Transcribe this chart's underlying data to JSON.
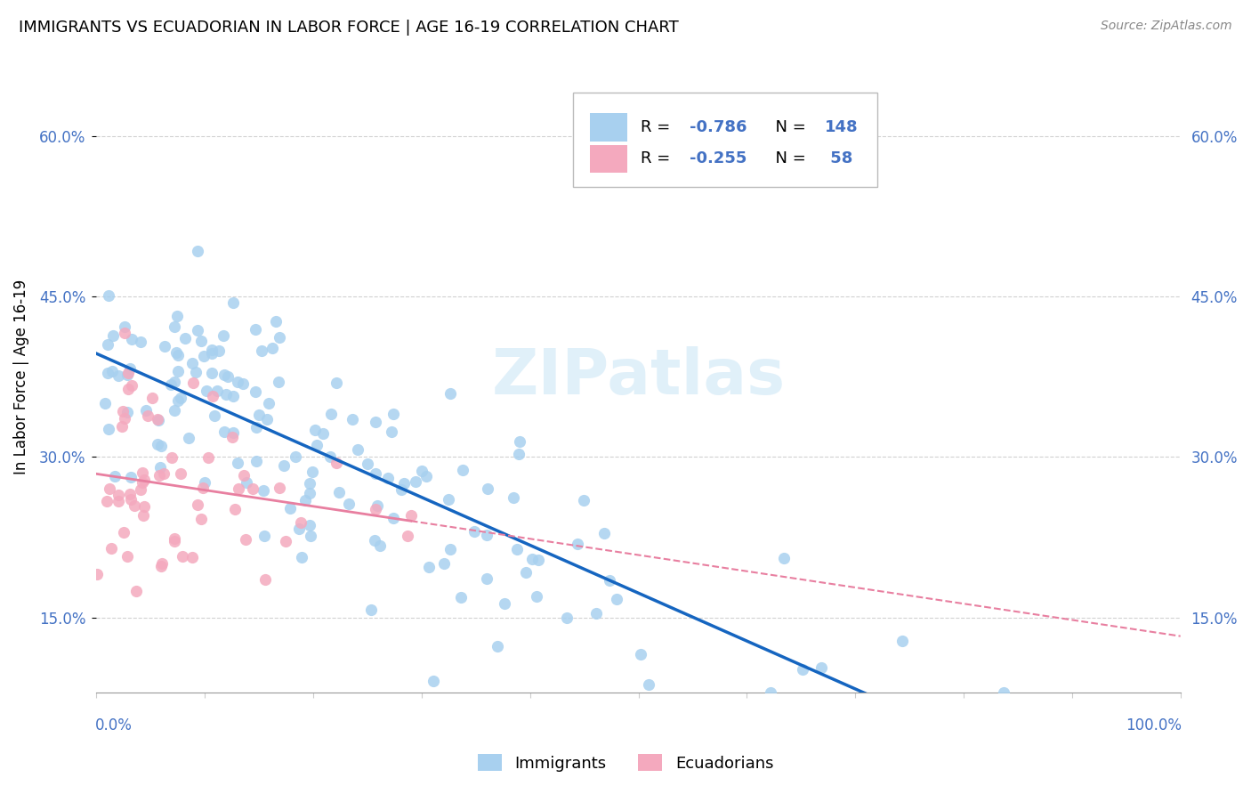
{
  "title": "IMMIGRANTS VS ECUADORIAN IN LABOR FORCE | AGE 16-19 CORRELATION CHART",
  "source": "Source: ZipAtlas.com",
  "ylabel": "In Labor Force | Age 16-19",
  "ytick_labels": [
    "15.0%",
    "30.0%",
    "45.0%",
    "60.0%"
  ],
  "ytick_values": [
    0.15,
    0.3,
    0.45,
    0.6
  ],
  "xlim": [
    0.0,
    1.0
  ],
  "ylim": [
    0.08,
    0.67
  ],
  "color_immigrants": "#a8d0ef",
  "color_ecuadorians": "#f4a9be",
  "color_line_immigrants": "#1565c0",
  "color_line_ecuadorians": "#e87fa0",
  "color_tick": "#4472c4",
  "watermark": "ZIPatlas",
  "R_imm": -0.786,
  "N_imm": 148,
  "R_ecu": -0.255,
  "N_ecu": 58
}
